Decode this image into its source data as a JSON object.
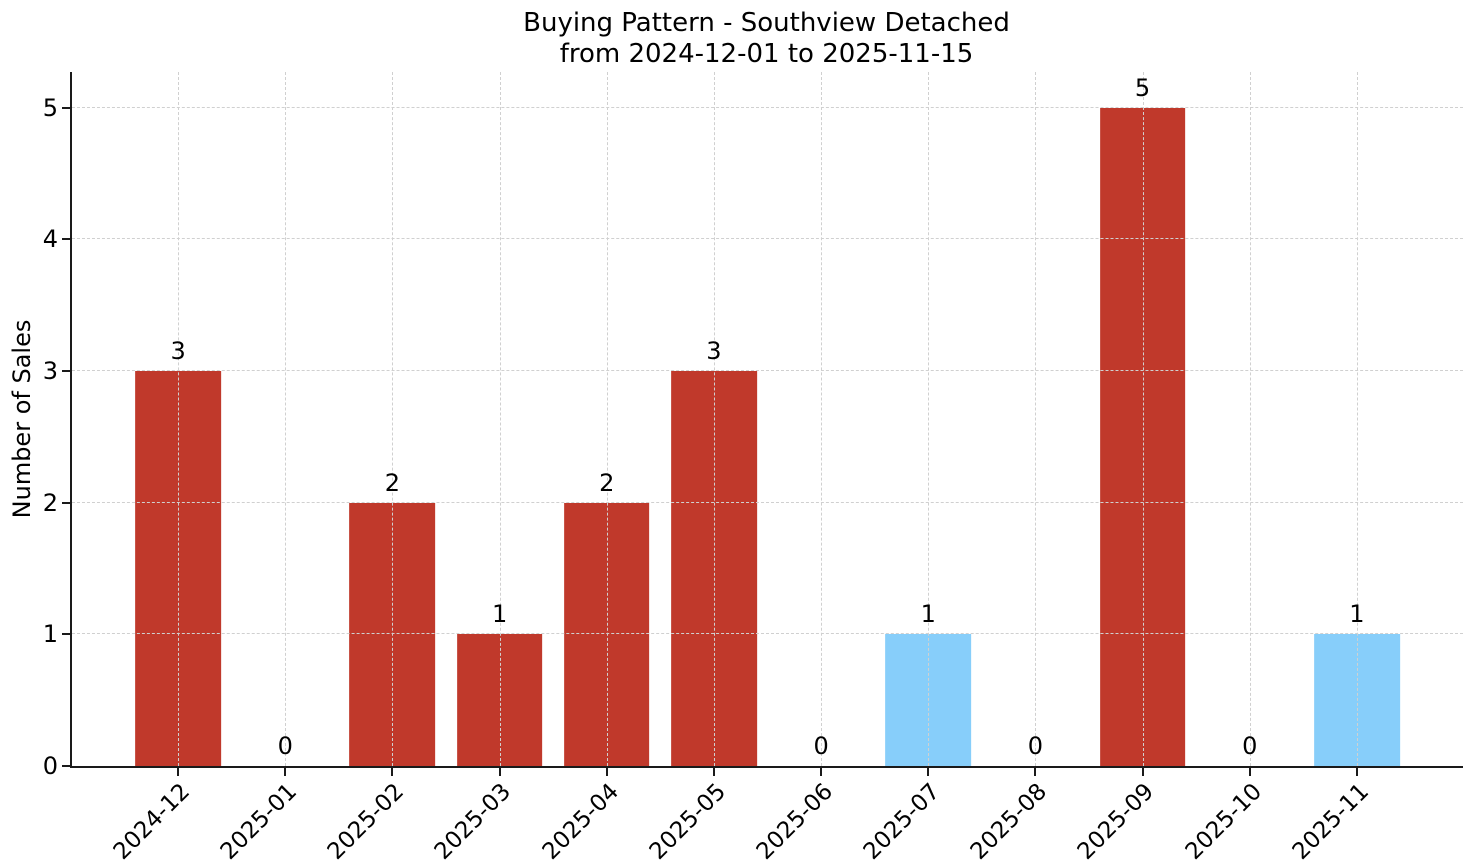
{
  "chart_data": {
    "type": "bar",
    "title": "Buying Pattern - Southview Detached",
    "subtitle": "from 2024-12-01 to 2025-11-15",
    "xlabel": "",
    "ylabel": "Number of Sales",
    "categories": [
      "2024-12",
      "2025-01",
      "2025-02",
      "2025-03",
      "2025-04",
      "2025-05",
      "2025-06",
      "2025-07",
      "2025-08",
      "2025-09",
      "2025-10",
      "2025-11"
    ],
    "values": [
      3,
      0,
      2,
      1,
      2,
      3,
      0,
      1,
      0,
      5,
      0,
      1
    ],
    "bar_colors": [
      "#c0392b",
      "#c0392b",
      "#c0392b",
      "#c0392b",
      "#c0392b",
      "#c0392b",
      "#c0392b",
      "#87cefa",
      "#c0392b",
      "#c0392b",
      "#c0392b",
      "#87cefa"
    ],
    "value_labels": [
      "3",
      "0",
      "2",
      "1",
      "2",
      "3",
      "0",
      "1",
      "0",
      "5",
      "0",
      "1"
    ],
    "yticks": [
      0,
      1,
      2,
      3,
      4,
      5
    ],
    "ylim": [
      0,
      5.27
    ],
    "grid": true,
    "grid_style": "dashed",
    "legend_position": "none",
    "colors": {
      "bar_default": "#c0392b",
      "bar_highlight": "#87cefa",
      "grid": "#d0d0d0",
      "axis": "#1a1a1a",
      "text": "#000000",
      "background": "#ffffff"
    }
  }
}
